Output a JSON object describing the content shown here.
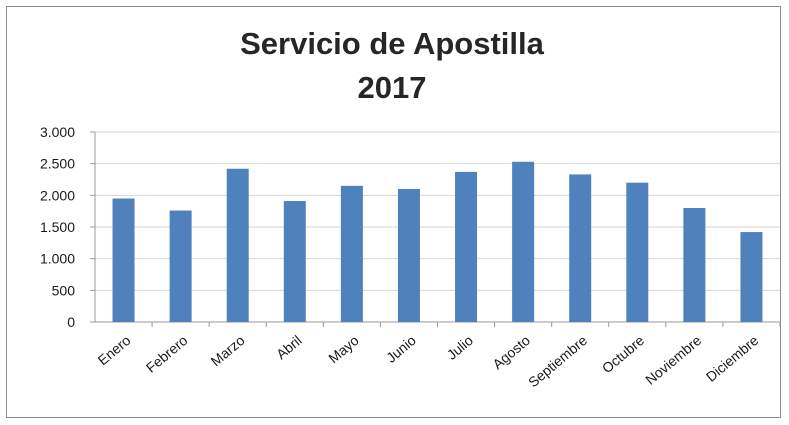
{
  "chart_data": {
    "type": "bar",
    "title": "Servicio de Apostilla",
    "subtitle": "2017",
    "categories": [
      "Enero",
      "Febrero",
      "Marzo",
      "Abril",
      "Mayo",
      "Junio",
      "Julio",
      "Agosto",
      "Septiembre",
      "Octubre",
      "Noviembre",
      "Diciembre"
    ],
    "values": [
      1950,
      1760,
      2420,
      1910,
      2150,
      2100,
      2370,
      2530,
      2330,
      2200,
      1800,
      1420
    ],
    "ylim": [
      0,
      3000
    ],
    "yticks": [
      0,
      500,
      1000,
      1500,
      2000,
      2500,
      3000
    ],
    "ytick_labels": [
      "0",
      "500",
      "1.000",
      "1.500",
      "2.000",
      "2.500",
      "3.000"
    ],
    "xlabel": "",
    "ylabel": "",
    "grid": true,
    "legend": "none",
    "bar_color": "#4f81bd"
  }
}
